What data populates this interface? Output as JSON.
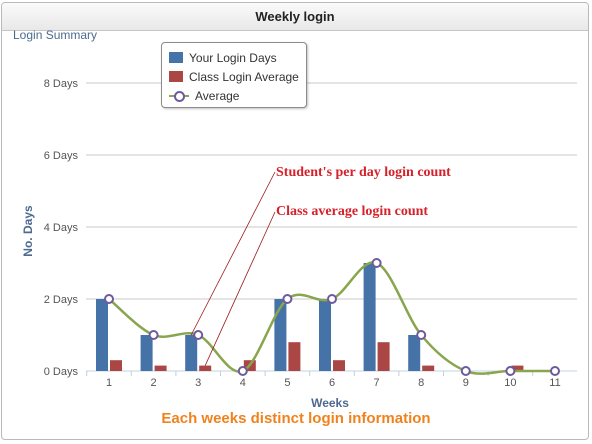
{
  "panel": {
    "title": "Weekly login"
  },
  "chart_data": {
    "type": "bar",
    "subtitle": "Login Summary",
    "xlabel": "Weeks",
    "ylabel": "No. Days",
    "categories": [
      "1",
      "2",
      "3",
      "4",
      "5",
      "6",
      "7",
      "8",
      "9",
      "10",
      "11"
    ],
    "yticks": [
      "0 Days",
      "2 Days",
      "4 Days",
      "6 Days",
      "8 Days"
    ],
    "ylim": [
      0,
      8
    ],
    "grid": true,
    "legend_position": "top-left",
    "series": [
      {
        "name": "Your Login Days",
        "type": "bar",
        "color": "#4572a7",
        "values": [
          2,
          1,
          1,
          0,
          2,
          2,
          3,
          1,
          0,
          0,
          0
        ]
      },
      {
        "name": "Class Login Average",
        "type": "bar",
        "color": "#aa4643",
        "values": [
          0.3,
          0.15,
          0.15,
          0.3,
          0.8,
          0.3,
          0.8,
          0.15,
          0,
          0.15,
          0
        ]
      },
      {
        "name": "Average",
        "type": "spline",
        "color": "#89a54e",
        "marker_color": "#6e5a9c",
        "values": [
          2,
          1,
          1,
          0,
          2,
          2,
          3,
          1,
          0,
          0,
          0
        ]
      }
    ],
    "annotations": [
      {
        "text": "Student's per day login count"
      },
      {
        "text": "Class average login count"
      }
    ],
    "caption": "Each weeks distinct login information"
  }
}
